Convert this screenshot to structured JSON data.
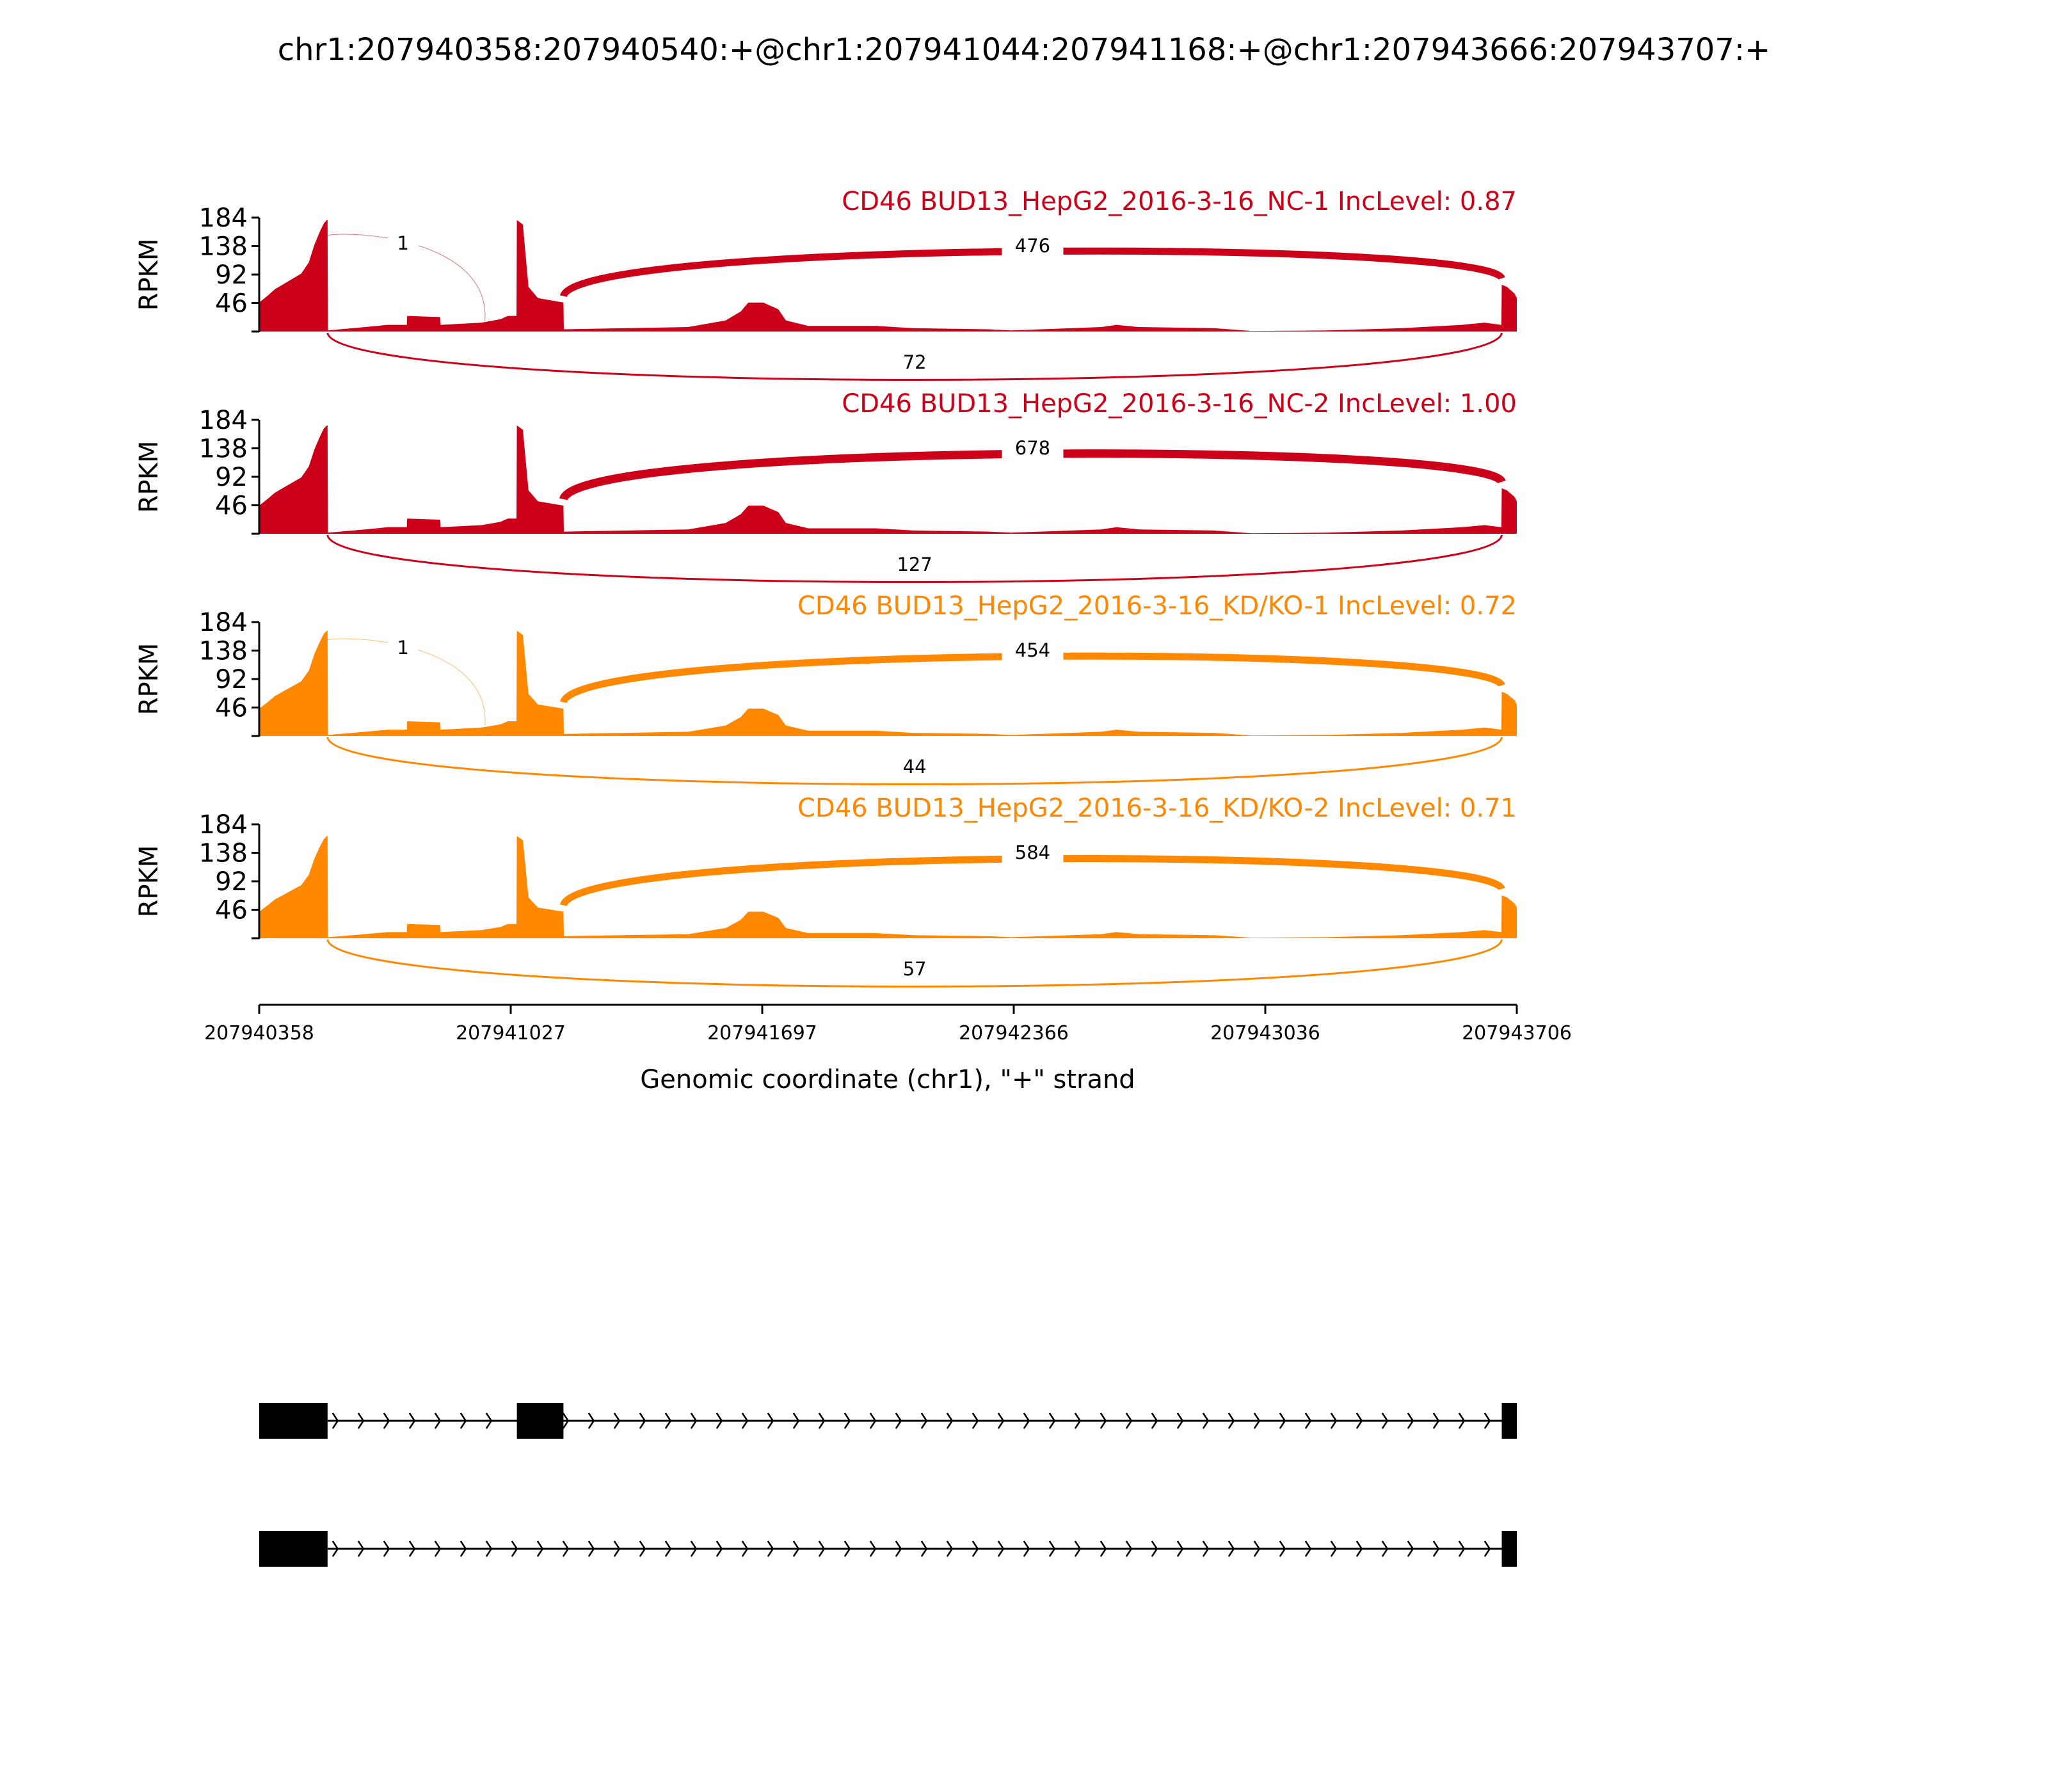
{
  "title": "chr1:207940358:207940540:+@chr1:207941044:207941168:+@chr1:207943666:207943707:+",
  "chart_data": {
    "type": "area",
    "ylabel": "RPKM",
    "xlabel": "Genomic coordinate (chr1), \"+\" strand",
    "xlim": [
      207940358,
      207943706
    ],
    "ylim": [
      0,
      184
    ],
    "yticks": [
      "184",
      "138",
      "92",
      "46"
    ],
    "xticks": [
      "207940358",
      "207941027",
      "207941697",
      "207942366",
      "207943036",
      "207943706"
    ],
    "exons": [
      [
        207940358,
        207940540
      ],
      [
        207941044,
        207941168
      ],
      [
        207943666,
        207943706
      ]
    ],
    "samples": [
      {
        "name": "CD46 BUD13_HepG2_2016-3-16_NC-1 IncLevel: 0.87",
        "color": "#cc0018",
        "peak": 180,
        "junctions": {
          "exon1_exon2": "1",
          "exon2_exon3": "476",
          "exon1_exon3": "72"
        }
      },
      {
        "name": "CD46 BUD13_HepG2_2016-3-16_NC-2 IncLevel: 1.00",
        "color": "#cc0018",
        "peak": 175,
        "junctions": {
          "exon1_exon2": null,
          "exon2_exon3": "678",
          "exon1_exon3": "127"
        }
      },
      {
        "name": "CD46 BUD13_HepG2_2016-3-16_KD/KO-1 IncLevel: 0.72",
        "color": "#ff8800",
        "peak": 170,
        "junctions": {
          "exon1_exon2": "1",
          "exon2_exon3": "454",
          "exon1_exon3": "44"
        }
      },
      {
        "name": "CD46 BUD13_HepG2_2016-3-16_KD/KO-2 IncLevel: 0.71",
        "color": "#ff8800",
        "peak": 165,
        "junctions": {
          "exon1_exon2": null,
          "exon2_exon3": "584",
          "exon1_exon3": "57"
        }
      }
    ],
    "isoforms": [
      {
        "exons": [
          [
            207940358,
            207940540
          ],
          [
            207941044,
            207941168
          ],
          [
            207943666,
            207943706
          ]
        ]
      },
      {
        "exons": [
          [
            207940358,
            207940540
          ],
          [
            207943666,
            207943706
          ]
        ]
      }
    ]
  }
}
